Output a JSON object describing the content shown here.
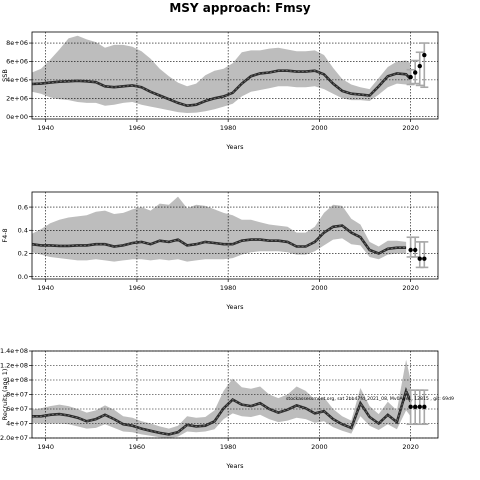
{
  "figure": {
    "title": "MSY approach: Fmsy",
    "watermark": "stockassessment.org, sat 2bb47fd_2021_08, Mv0Age1, 12815 , git: 69d9"
  },
  "chart_data": [
    {
      "type": "line",
      "ylabel": "SSB",
      "xlabel": "Years",
      "xlim": [
        1937,
        2026
      ],
      "ylim": [
        -250000.0,
        9200000.0
      ],
      "xticks": [
        1940,
        1960,
        1980,
        2000,
        2020
      ],
      "xtick_labels": [
        "1940",
        "1960",
        "1980",
        "2000",
        "2020"
      ],
      "yticks": [
        0,
        2000000,
        4000000,
        6000000,
        8000000
      ],
      "ytick_labels": [
        "0e+00",
        "2e+06",
        "4e+06",
        "6e+06",
        "8e+06"
      ],
      "grid": true,
      "years": [
        1937,
        1939,
        1941,
        1943,
        1945,
        1947,
        1949,
        1951,
        1953,
        1955,
        1957,
        1959,
        1961,
        1963,
        1965,
        1967,
        1969,
        1971,
        1973,
        1975,
        1977,
        1979,
        1981,
        1983,
        1985,
        1987,
        1989,
        1991,
        1993,
        1995,
        1997,
        1999,
        2001,
        2003,
        2005,
        2007,
        2009,
        2011,
        2013,
        2015,
        2017,
        2019,
        2020
      ],
      "estimate": [
        3550000.0,
        3600000.0,
        3700000.0,
        3800000.0,
        3850000.0,
        3900000.0,
        3850000.0,
        3750000.0,
        3300000.0,
        3200000.0,
        3300000.0,
        3400000.0,
        3200000.0,
        2700000.0,
        2300000.0,
        1900000.0,
        1500000.0,
        1200000.0,
        1300000.0,
        1700000.0,
        2000000.0,
        2200000.0,
        2600000.0,
        3600000.0,
        4400000.0,
        4700000.0,
        4800000.0,
        5000000.0,
        5000000.0,
        4900000.0,
        4900000.0,
        5000000.0,
        4600000.0,
        3600000.0,
        2800000.0,
        2500000.0,
        2400000.0,
        2300000.0,
        3300000.0,
        4400000.0,
        4700000.0,
        4600000.0,
        4100000.0
      ],
      "lower": [
        2700000.0,
        2500000.0,
        2100000.0,
        1900000.0,
        1800000.0,
        1600000.0,
        1500000.0,
        1500000.0,
        1200000.0,
        1300000.0,
        1500000.0,
        1600000.0,
        1300000.0,
        1100000.0,
        900000.0,
        700000.0,
        500000.0,
        400000.0,
        450000.0,
        600000.0,
        800000.0,
        1100000.0,
        1400000.0,
        2200000.0,
        2700000.0,
        2900000.0,
        3100000.0,
        3300000.0,
        3300000.0,
        3200000.0,
        3200000.0,
        3300000.0,
        3000000.0,
        2500000.0,
        2000000.0,
        1800000.0,
        1800000.0,
        1700000.0,
        2400000.0,
        3200000.0,
        3600000.0,
        3500000.0,
        3400000.0
      ],
      "upper": [
        4800000.0,
        5200000.0,
        6200000.0,
        7300000.0,
        8500000.0,
        8800000.0,
        8400000.0,
        8100000.0,
        7500000.0,
        7800000.0,
        7800000.0,
        7600000.0,
        7100000.0,
        6300000.0,
        5200000.0,
        4400000.0,
        3700000.0,
        3300000.0,
        3600000.0,
        4500000.0,
        5000000.0,
        5200000.0,
        5800000.0,
        7000000.0,
        7200000.0,
        7200000.0,
        7400000.0,
        7500000.0,
        7300000.0,
        7100000.0,
        7100000.0,
        7200000.0,
        6700000.0,
        5300000.0,
        4100000.0,
        3500000.0,
        3200000.0,
        3000000.0,
        4200000.0,
        5400000.0,
        6000000.0,
        6100000.0,
        5800000.0
      ],
      "forecast": [
        {
          "year": 2020,
          "value": 4300000.0,
          "lo": 3500000.0,
          "hi": 5100000.0
        },
        {
          "year": 2021,
          "value": 4800000.0,
          "lo": 3600000.0,
          "hi": 6100000.0
        },
        {
          "year": 2022,
          "value": 5500000.0,
          "lo": 3400000.0,
          "hi": 7000000.0
        },
        {
          "year": 2023,
          "value": 6700000.0,
          "lo": 3200000.0,
          "hi": 8000000.0
        }
      ]
    },
    {
      "type": "line",
      "ylabel": "F4-8",
      "xlabel": "Years",
      "xlim": [
        1937,
        2026
      ],
      "ylim": [
        -0.02,
        0.73
      ],
      "xticks": [
        1940,
        1960,
        1980,
        2000,
        2020
      ],
      "xtick_labels": [
        "1940",
        "1960",
        "1980",
        "2000",
        "2020"
      ],
      "yticks": [
        0,
        0.2,
        0.4,
        0.6
      ],
      "ytick_labels": [
        "0.0",
        "0.2",
        "0.4",
        "0.6"
      ],
      "grid": true,
      "years": [
        1937,
        1939,
        1941,
        1943,
        1945,
        1947,
        1949,
        1951,
        1953,
        1955,
        1957,
        1959,
        1961,
        1963,
        1965,
        1967,
        1969,
        1971,
        1973,
        1975,
        1977,
        1979,
        1981,
        1983,
        1985,
        1987,
        1989,
        1991,
        1993,
        1995,
        1997,
        1999,
        2001,
        2003,
        2005,
        2007,
        2009,
        2011,
        2013,
        2015,
        2017,
        2019
      ],
      "estimate": [
        0.28,
        0.27,
        0.27,
        0.265,
        0.265,
        0.27,
        0.27,
        0.28,
        0.28,
        0.26,
        0.27,
        0.29,
        0.3,
        0.28,
        0.31,
        0.3,
        0.32,
        0.27,
        0.28,
        0.3,
        0.29,
        0.28,
        0.28,
        0.31,
        0.32,
        0.32,
        0.31,
        0.31,
        0.3,
        0.26,
        0.26,
        0.3,
        0.38,
        0.43,
        0.44,
        0.38,
        0.34,
        0.23,
        0.2,
        0.24,
        0.25,
        0.25
      ],
      "lower": [
        0.21,
        0.19,
        0.17,
        0.16,
        0.15,
        0.14,
        0.14,
        0.15,
        0.14,
        0.13,
        0.14,
        0.15,
        0.15,
        0.14,
        0.15,
        0.14,
        0.15,
        0.13,
        0.14,
        0.15,
        0.15,
        0.15,
        0.16,
        0.19,
        0.21,
        0.22,
        0.22,
        0.22,
        0.21,
        0.19,
        0.19,
        0.22,
        0.27,
        0.32,
        0.33,
        0.28,
        0.27,
        0.17,
        0.15,
        0.19,
        0.2,
        0.2
      ],
      "upper": [
        0.37,
        0.41,
        0.46,
        0.49,
        0.51,
        0.52,
        0.53,
        0.56,
        0.57,
        0.54,
        0.55,
        0.58,
        0.6,
        0.57,
        0.63,
        0.62,
        0.69,
        0.59,
        0.62,
        0.61,
        0.58,
        0.55,
        0.53,
        0.49,
        0.49,
        0.47,
        0.45,
        0.44,
        0.43,
        0.38,
        0.38,
        0.43,
        0.55,
        0.62,
        0.61,
        0.5,
        0.45,
        0.3,
        0.26,
        0.31,
        0.31,
        0.3
      ],
      "forecast": [
        {
          "year": 2020,
          "value": 0.23,
          "lo": 0.17,
          "hi": 0.34
        },
        {
          "year": 2021,
          "value": 0.23,
          "lo": 0.17,
          "hi": 0.34
        },
        {
          "year": 2022,
          "value": 0.155,
          "lo": 0.08,
          "hi": 0.3
        },
        {
          "year": 2023,
          "value": 0.155,
          "lo": 0.08,
          "hi": 0.3
        }
      ]
    },
    {
      "type": "line",
      "ylabel": "Recruits (age 1)",
      "xlabel": "Years",
      "xlim": [
        1937,
        2026
      ],
      "ylim": [
        20000000.0,
        140000000.0
      ],
      "xticks": [
        1940,
        1960,
        1980,
        2000,
        2020
      ],
      "xtick_labels": [
        "1940",
        "1960",
        "1980",
        "2000",
        "2020"
      ],
      "yticks": [
        20000000,
        40000000,
        60000000,
        80000000,
        100000000,
        120000000,
        140000000
      ],
      "ytick_labels": [
        "2.0e+07",
        "4e+07",
        "6e+07",
        "8e+07",
        "1e+08",
        "1.2e+08",
        "1.4e+08"
      ],
      "grid": true,
      "years": [
        1937,
        1939,
        1941,
        1943,
        1945,
        1947,
        1949,
        1951,
        1953,
        1955,
        1957,
        1959,
        1961,
        1963,
        1965,
        1967,
        1969,
        1971,
        1973,
        1975,
        1977,
        1979,
        1981,
        1983,
        1985,
        1987,
        1989,
        1991,
        1993,
        1995,
        1997,
        1999,
        2001,
        2003,
        2005,
        2007,
        2009,
        2011,
        2013,
        2015,
        2017,
        2019,
        2020
      ],
      "estimate": [
        50000000.0,
        50000000.0,
        52000000.0,
        53000000.0,
        51000000.0,
        48000000.0,
        43000000.0,
        46000000.0,
        52000000.0,
        46000000.0,
        39000000.0,
        37000000.0,
        33000000.0,
        30000000.0,
        27000000.0,
        25000000.0,
        28000000.0,
        38000000.0,
        36000000.0,
        37000000.0,
        43000000.0,
        61000000.0,
        73000000.0,
        66000000.0,
        64000000.0,
        68000000.0,
        60000000.0,
        55000000.0,
        59000000.0,
        65000000.0,
        61000000.0,
        54000000.0,
        57000000.0,
        46000000.0,
        39000000.0,
        34000000.0,
        68000000.0,
        49000000.0,
        40000000.0,
        52000000.0,
        42000000.0,
        85000000.0,
        70000000.0
      ],
      "lower": [
        41000000.0,
        40000000.0,
        40000000.0,
        40000000.0,
        39000000.0,
        36000000.0,
        33000000.0,
        34000000.0,
        39000000.0,
        34000000.0,
        29000000.0,
        28000000.0,
        25000000.0,
        23000000.0,
        21000000.0,
        20000000.0,
        22000000.0,
        29000000.0,
        28000000.0,
        29000000.0,
        32000000.0,
        46000000.0,
        54000000.0,
        50000000.0,
        49000000.0,
        52000000.0,
        46000000.0,
        42000000.0,
        44000000.0,
        48000000.0,
        46000000.0,
        41000000.0,
        43000000.0,
        35000000.0,
        30000000.0,
        26000000.0,
        50000000.0,
        37000000.0,
        31000000.0,
        39000000.0,
        32000000.0,
        58000000.0,
        50000000.0
      ],
      "upper": [
        59000000.0,
        61000000.0,
        64000000.0,
        66000000.0,
        64000000.0,
        60000000.0,
        55000000.0,
        58000000.0,
        65000000.0,
        59000000.0,
        50000000.0,
        48000000.0,
        43000000.0,
        40000000.0,
        36000000.0,
        33000000.0,
        37000000.0,
        50000000.0,
        48000000.0,
        49000000.0,
        58000000.0,
        85000000.0,
        102000000.0,
        90000000.0,
        88000000.0,
        91000000.0,
        80000000.0,
        75000000.0,
        80000000.0,
        91000000.0,
        85000000.0,
        73000000.0,
        76000000.0,
        60000000.0,
        50000000.0,
        44000000.0,
        89000000.0,
        64000000.0,
        53000000.0,
        70000000.0,
        58000000.0,
        128000000.0,
        100000000.0
      ],
      "forecast": [
        {
          "year": 2020,
          "value": 63000000.0,
          "lo": 39000000.0,
          "hi": 86000000.0
        },
        {
          "year": 2021,
          "value": 63000000.0,
          "lo": 39000000.0,
          "hi": 86000000.0
        },
        {
          "year": 2022,
          "value": 63000000.0,
          "lo": 39000000.0,
          "hi": 86000000.0
        },
        {
          "year": 2023,
          "value": 63000000.0,
          "lo": 39000000.0,
          "hi": 86000000.0
        }
      ]
    }
  ],
  "colors": {
    "band": "#bdbdbd",
    "line": "#2b2b2b",
    "point": "#000000",
    "errorbar": "#a8a8a8"
  }
}
